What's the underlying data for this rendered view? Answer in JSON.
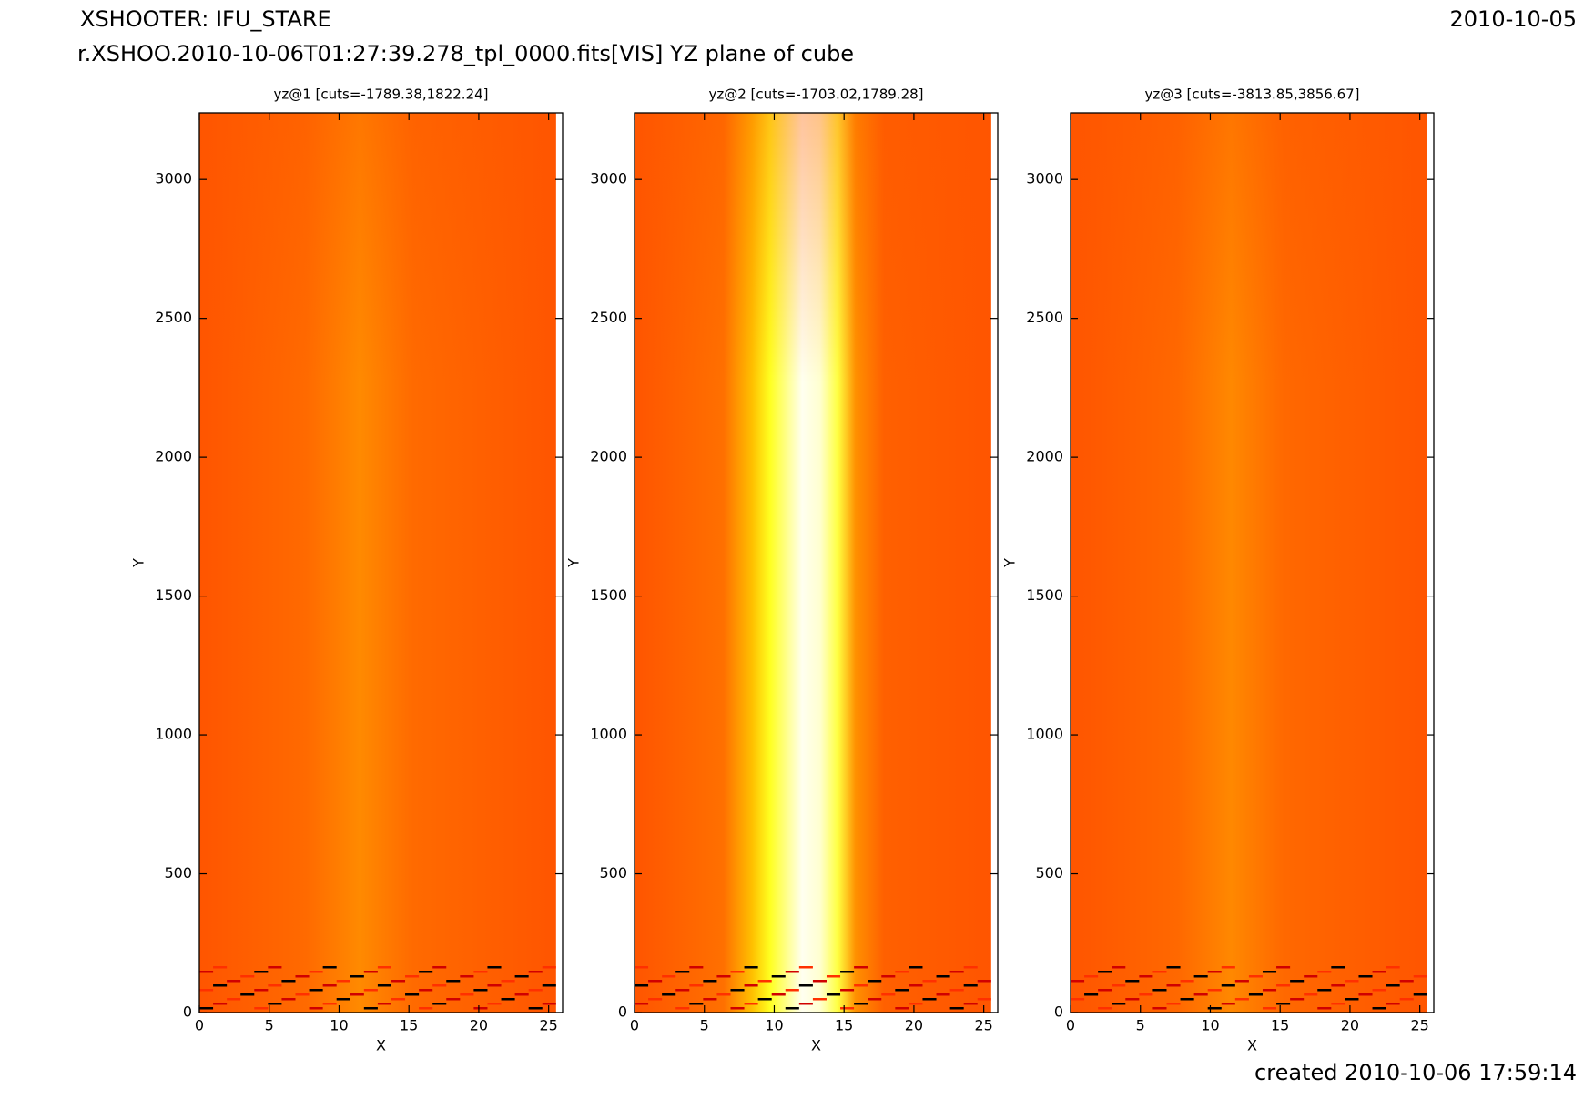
{
  "header": {
    "title": "XSHOOTER: IFU_STARE",
    "date": "2010-10-05",
    "subtitle": "r.XSHOO.2010-10-06T01:27:39.278_tpl_0000.fits[VIS] YZ plane of cube"
  },
  "footer": "created 2010-10-06 17:59:14",
  "chart_data": [
    {
      "type": "image",
      "title": "yz@1 [cuts=-1789.38,1822.24]",
      "xlabel": "X",
      "ylabel": "Y",
      "xlim": [
        0,
        26
      ],
      "ylim": [
        0,
        3240
      ],
      "xticks": [
        0,
        5,
        10,
        15,
        20,
        25
      ],
      "yticks": [
        0,
        500,
        1000,
        1500,
        2000,
        2500,
        3000
      ]
    },
    {
      "type": "image",
      "title": "yz@2 [cuts=-1703.02,1789.28]",
      "xlabel": "X",
      "ylabel": "Y",
      "xlim": [
        0,
        26
      ],
      "ylim": [
        0,
        3240
      ],
      "xticks": [
        0,
        5,
        10,
        15,
        20,
        25
      ],
      "yticks": [
        0,
        500,
        1000,
        1500,
        2000,
        2500,
        3000
      ]
    },
    {
      "type": "image",
      "title": "yz@3 [cuts=-3813.85,3856.67]",
      "xlabel": "X",
      "ylabel": "Y",
      "xlim": [
        0,
        26
      ],
      "ylim": [
        0,
        3240
      ],
      "xticks": [
        0,
        5,
        10,
        15,
        20,
        25
      ],
      "yticks": [
        0,
        500,
        1000,
        1500,
        2000,
        2500,
        3000
      ]
    }
  ]
}
